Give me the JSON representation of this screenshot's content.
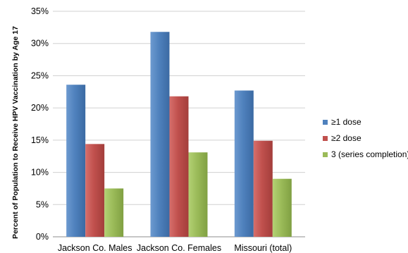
{
  "chart_data": {
    "type": "bar",
    "title": "",
    "xlabel": "",
    "ylabel": "Percent of Population to Receive HPV Vaccination by Age 17",
    "ylim": [
      0,
      35
    ],
    "yticks": [
      "0%",
      "5%",
      "10%",
      "15%",
      "20%",
      "25%",
      "30%",
      "35%"
    ],
    "categories": [
      "Jackson Co. Males",
      "Jackson Co. Females",
      "Missouri (total)"
    ],
    "series": [
      {
        "name": "≥1 dose",
        "color": "#4F81BD",
        "values": [
          23.6,
          31.8,
          22.7
        ]
      },
      {
        "name": "≥2 dose",
        "color": "#C0504D",
        "values": [
          14.4,
          21.8,
          14.9
        ]
      },
      {
        "name": "3 (series completion)",
        "color": "#9BBB59",
        "values": [
          7.5,
          13.1,
          9.0
        ]
      }
    ],
    "grid": true,
    "legend_position": "right"
  }
}
